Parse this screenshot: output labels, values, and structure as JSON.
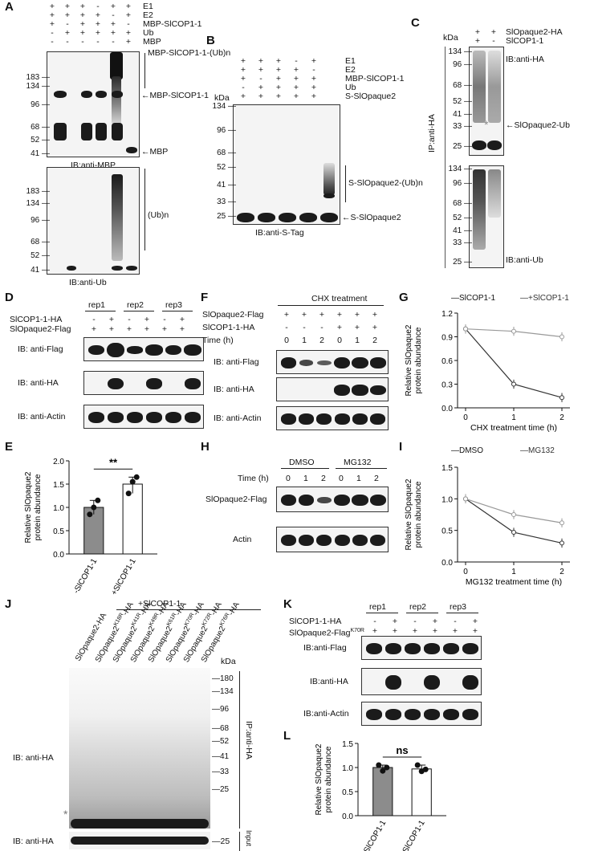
{
  "panels": {
    "A": "A",
    "B": "B",
    "C": "C",
    "D": "D",
    "E": "E",
    "F": "F",
    "G": "G",
    "H": "H",
    "I": "I",
    "J": "J",
    "K": "K",
    "L": "L"
  },
  "common": {
    "kda": "kDa",
    "plus": "+",
    "minus": "-",
    "rep1": "rep1",
    "rep2": "rep2",
    "rep3": "rep3"
  },
  "A": {
    "rows": [
      {
        "label": "E1",
        "signs": [
          "+",
          "+",
          "+",
          "-",
          "+",
          "+"
        ]
      },
      {
        "label": "E2",
        "signs": [
          "+",
          "+",
          "+",
          "+",
          "-",
          "+"
        ]
      },
      {
        "label": "MBP-SlCOP1-1",
        "signs": [
          "+",
          "-",
          "+",
          "+",
          "+",
          "-"
        ]
      },
      {
        "label": "Ub",
        "signs": [
          "-",
          "+",
          "+",
          "+",
          "+",
          "+"
        ]
      },
      {
        "label": "MBP",
        "signs": [
          "-",
          "-",
          "-",
          "-",
          "-",
          "+"
        ]
      }
    ],
    "top_markers": [
      "183",
      "134",
      "96",
      "68",
      "52",
      "41"
    ],
    "bottom_markers": [
      "183",
      "134",
      "96",
      "68",
      "52",
      "41"
    ],
    "ann1": "MBP-SlCOP1-1-(Ub)n",
    "ann2": "←MBP-SlCOP1-1",
    "ann3": "←MBP",
    "ann4": "(Ub)n",
    "ib_top": "IB:anti-MBP",
    "ib_bottom": "IB:anti-Ub"
  },
  "B": {
    "rows": [
      {
        "label": "E1",
        "signs": [
          "+",
          "+",
          "+",
          "-",
          "+"
        ]
      },
      {
        "label": "E2",
        "signs": [
          "+",
          "+",
          "+",
          "+",
          "-"
        ]
      },
      {
        "label": "MBP-SlCOP1-1",
        "signs": [
          "+",
          "-",
          "+",
          "+",
          "+"
        ]
      },
      {
        "label": "Ub",
        "signs": [
          "-",
          "+",
          "+",
          "+",
          "+"
        ]
      },
      {
        "label": "S-SlOpaque2",
        "signs": [
          "+",
          "+",
          "+",
          "+",
          "+"
        ]
      }
    ],
    "markers": [
      "134",
      "96",
      "68",
      "52",
      "41",
      "33",
      "25"
    ],
    "ann1": "S-SlOpaque2-(Ub)n",
    "ann2": "←S-SlOpaque2",
    "ib": "IB:anti-S-Tag"
  },
  "C": {
    "rows": [
      {
        "label": "SlOpaque2-HA",
        "signs": [
          "+",
          "+"
        ]
      },
      {
        "label": "SlCOP1-1",
        "signs": [
          "+",
          "-"
        ]
      }
    ],
    "top_markers": [
      "134",
      "96",
      "68",
      "52",
      "41",
      "33",
      "25"
    ],
    "bottom_markers": [
      "134",
      "96",
      "68",
      "52",
      "41",
      "33",
      "25"
    ],
    "ib_top": "IB:anti-HA",
    "ann": "←SlOpaque2-Ub",
    "ip": "IP:anti-HA",
    "ib_bottom": "IB:anti-Ub",
    "star": "*"
  },
  "D": {
    "rows": [
      {
        "label": "SlCOP1-1-HA",
        "signs": [
          "-",
          "+",
          "-",
          "+",
          "-",
          "+"
        ]
      },
      {
        "label": "SlOpaque2-Flag",
        "signs": [
          "+",
          "+",
          "+",
          "+",
          "+",
          "+"
        ]
      }
    ],
    "blots": [
      "IB: anti-Flag",
      "IB: anti-HA",
      "IB: anti-Actin"
    ]
  },
  "E": {
    "ylabel": "Relative SlOpaque2\nprotein abundance",
    "yticks": [
      "0.0",
      "0.5",
      "1.0",
      "1.5",
      "2.0"
    ],
    "sig": "**",
    "categories": [
      "-SlCOP1-1",
      "+SlCOP1-1"
    ]
  },
  "F": {
    "title": "CHX treatment",
    "rows": [
      {
        "label": "SlOpaque2-Flag",
        "signs": [
          "+",
          "+",
          "+",
          "+",
          "+",
          "+"
        ]
      },
      {
        "label": "SlCOP1-1-HA",
        "signs": [
          "-",
          "-",
          "-",
          "+",
          "+",
          "+"
        ]
      },
      {
        "label": "Time (h)",
        "signs": [
          "0",
          "1",
          "2",
          "0",
          "1",
          "2"
        ]
      }
    ],
    "blots": [
      "IB: anti-Flag",
      "IB: anti-HA",
      "IB: anti-Actin"
    ]
  },
  "G": {
    "legend": [
      "—SlCOP1-1",
      "—+SlCOP1-1"
    ],
    "ylabel": "Relative SlOpaque2\nprotein abundance",
    "xlabel": "CHX treatment time (h)",
    "yticks": [
      "0.0",
      "0.3",
      "0.6",
      "0.9",
      "1.2"
    ],
    "xticks": [
      "0",
      "1",
      "2"
    ]
  },
  "H": {
    "groups": [
      "DMSO",
      "MG132"
    ],
    "time_label": "Time (h)",
    "times": [
      "0",
      "1",
      "2",
      "0",
      "1",
      "2"
    ],
    "blots": [
      "SlOpaque2-Flag",
      "Actin"
    ]
  },
  "I": {
    "legend": [
      "—DMSO",
      "—MG132"
    ],
    "ylabel": "Relative SlOpaque2\nprotein abundance",
    "xlabel": "MG132 treatment time (h)",
    "yticks": [
      "0.0",
      "0.5",
      "1.0",
      "1.5"
    ],
    "xticks": [
      "0",
      "1",
      "2"
    ]
  },
  "J": {
    "title": "+SlCOP1-1",
    "lanes": [
      {
        "base": "SlOpaque2-HA",
        "sup": ""
      },
      {
        "base": "SlOpaque2",
        "sup": "K18R",
        "suffix": "-HA"
      },
      {
        "base": "SlOpaque2",
        "sup": "K41R",
        "suffix": "-HA"
      },
      {
        "base": "SlOpaque2",
        "sup": "K49R",
        "suffix": "-HA"
      },
      {
        "base": "SlOpaque2",
        "sup": "K61R",
        "suffix": "-HA"
      },
      {
        "base": "SlOpaque2",
        "sup": "K70R",
        "suffix": "-HA"
      },
      {
        "base": "SlOpaque2",
        "sup": "K72R",
        "suffix": "-HA"
      },
      {
        "base": "SlOpaque2",
        "sup": "K76R",
        "suffix": "-HA"
      }
    ],
    "markers": [
      "180",
      "134",
      "96",
      "68",
      "52",
      "41",
      "33",
      "25"
    ],
    "input_marker_top": "25",
    "input_marker_bottom": "41",
    "ib_main": "IB: anti-HA",
    "ib_input1": "IB: anti-HA",
    "ib_input2": "IB: anti-Actin",
    "ip": "IP:anti-HA",
    "input": "Input",
    "star": "*"
  },
  "K": {
    "rows": [
      {
        "label": "SlCOP1-1-HA",
        "signs": [
          "-",
          "+",
          "-",
          "+",
          "-",
          "+"
        ]
      },
      {
        "label": "SlOpaque2-Flag",
        "sup": "K70R",
        "signs": [
          "+",
          "+",
          "+",
          "+",
          "+",
          "+"
        ]
      }
    ],
    "blots": [
      "IB:anti-Flag",
      "IB:anti-HA",
      "IB:anti-Actin"
    ]
  },
  "L": {
    "ylabel": "Relative SlOpaque2\nprotein abundance",
    "yticks": [
      "0.0",
      "0.5",
      "1.0",
      "1.5"
    ],
    "sig": "ns",
    "categories": [
      "-SlCOP1-1",
      "+SlCOP1-1"
    ]
  },
  "chart_data": [
    {
      "panel": "E",
      "type": "bar",
      "categories": [
        "-SlCOP1-1",
        "+SlCOP1-1"
      ],
      "values": [
        1.0,
        1.5
      ],
      "points": [
        [
          0.85,
          1.0,
          1.15
        ],
        [
          1.3,
          1.55,
          1.65
        ]
      ],
      "ylim": [
        0,
        2.0
      ]
    },
    {
      "panel": "G",
      "type": "line",
      "x": [
        0,
        1,
        2
      ],
      "series": [
        {
          "name": "-SlCOP1-1",
          "values": [
            1.0,
            0.3,
            0.13
          ]
        },
        {
          "name": "+SlCOP1-1",
          "values": [
            1.0,
            0.97,
            0.9
          ]
        }
      ],
      "xlabel": "CHX treatment time (h)",
      "ylim": [
        0,
        1.2
      ]
    },
    {
      "panel": "I",
      "type": "line",
      "x": [
        0,
        1,
        2
      ],
      "series": [
        {
          "name": "DMSO",
          "values": [
            1.0,
            0.47,
            0.3
          ]
        },
        {
          "name": "MG132",
          "values": [
            1.0,
            0.75,
            0.62
          ]
        }
      ],
      "xlabel": "MG132 treatment time (h)",
      "ylim": [
        0,
        1.5
      ]
    },
    {
      "panel": "L",
      "type": "bar",
      "categories": [
        "-SlCOP1-1",
        "+SlCOP1-1"
      ],
      "values": [
        1.0,
        0.97
      ],
      "points": [
        [
          1.05,
          0.93,
          1.0
        ],
        [
          1.05,
          0.92,
          0.96
        ]
      ],
      "ylim": [
        0,
        1.5
      ]
    }
  ]
}
